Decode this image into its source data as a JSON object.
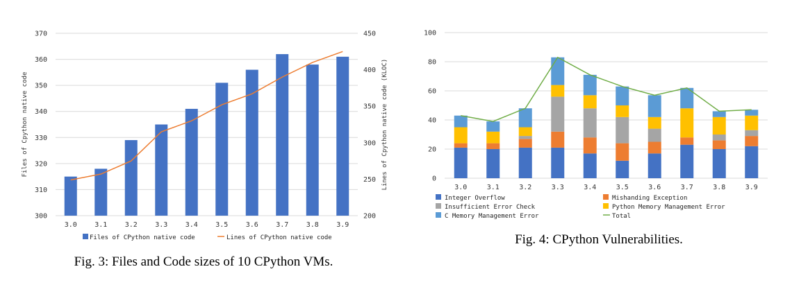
{
  "chart_data": [
    {
      "type": "bar",
      "categories": [
        "3.0",
        "3.1",
        "3.2",
        "3.3",
        "3.4",
        "3.5",
        "3.6",
        "3.7",
        "3.8",
        "3.9"
      ],
      "ylabel": "Files of Cpython native code",
      "y2label": "Lines of Cpython native code (KLOC)",
      "ylim": [
        300,
        370
      ],
      "yticks": [
        300,
        310,
        320,
        330,
        340,
        350,
        360,
        370
      ],
      "y2lim": [
        200,
        450
      ],
      "y2ticks": [
        200,
        250,
        300,
        350,
        400,
        450
      ],
      "grid": true,
      "legend": "bottom",
      "series": [
        {
          "name": "Files of CPython native code",
          "kind": "bar",
          "axis": "left",
          "color": "#4472c4",
          "values": [
            315,
            318,
            329,
            335,
            341,
            351,
            356,
            362,
            358,
            361
          ]
        },
        {
          "name": "Lines of CPython native code",
          "kind": "line",
          "axis": "right",
          "color": "#ed7d31",
          "values": [
            249,
            257,
            275,
            315,
            330,
            352,
            367,
            390,
            410,
            425
          ]
        }
      ],
      "caption": "Fig. 3: Files and Code sizes of 10 CPython VMs."
    },
    {
      "type": "bar",
      "stacked": true,
      "categories": [
        "3.0",
        "3.1",
        "3.2",
        "3.3",
        "3.4",
        "3.5",
        "3.6",
        "3.7",
        "3.8",
        "3.9"
      ],
      "ylim": [
        0,
        100
      ],
      "yticks": [
        0,
        20,
        40,
        60,
        80,
        100
      ],
      "grid": true,
      "legend": "bottom",
      "series": [
        {
          "name": "Integer Overflow",
          "color": "#4472c4",
          "values": [
            21,
            20,
            21,
            21,
            17,
            12,
            17,
            23,
            20,
            22
          ]
        },
        {
          "name": "Mishanding Exception",
          "color": "#ed7d31",
          "values": [
            3,
            4,
            6,
            11,
            11,
            12,
            8,
            5,
            6,
            7
          ]
        },
        {
          "name": "Insufficient Error Check",
          "color": "#a5a5a5",
          "values": [
            0,
            0,
            2,
            24,
            20,
            18,
            9,
            0,
            4,
            4
          ]
        },
        {
          "name": "Python Memory Management Error",
          "color": "#ffc000",
          "values": [
            11,
            8,
            6,
            8,
            9,
            8,
            8,
            20,
            12,
            10
          ]
        },
        {
          "name": "C Memory Management Error",
          "color": "#5b9bd5",
          "values": [
            8,
            7,
            13,
            19,
            14,
            13,
            15,
            14,
            4,
            4
          ]
        },
        {
          "name": "Total",
          "kind": "line",
          "color": "#70ad47",
          "values": [
            43,
            39,
            48,
            83,
            71,
            63,
            57,
            62,
            46,
            47
          ]
        }
      ],
      "caption": "Fig. 4: CPython Vulnerabilities."
    }
  ]
}
